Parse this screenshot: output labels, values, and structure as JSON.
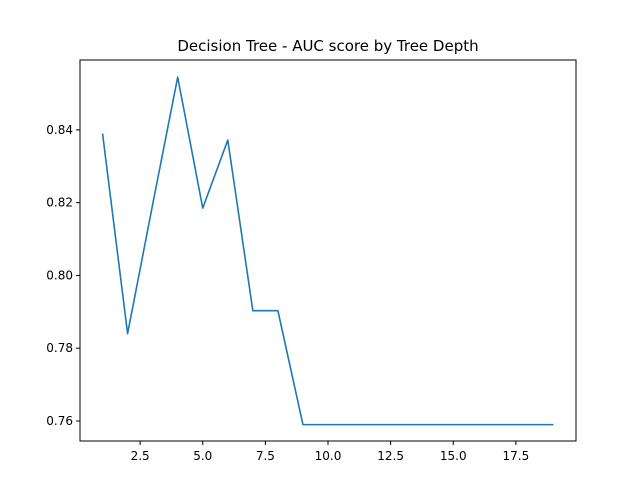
{
  "chart_data": {
    "type": "line",
    "title": "Decision Tree - AUC score by Tree Depth",
    "xlabel": "",
    "ylabel": "",
    "xlim": [
      0.1,
      19.9
    ],
    "ylim": [
      0.7545,
      0.8592
    ],
    "x_ticks": [
      2.5,
      5.0,
      7.5,
      10.0,
      12.5,
      15.0,
      17.5
    ],
    "x_tick_labels": [
      "2.5",
      "5.0",
      "7.5",
      "10.0",
      "12.5",
      "15.0",
      "17.5"
    ],
    "y_ticks": [
      0.76,
      0.78,
      0.8,
      0.82,
      0.84
    ],
    "y_tick_labels": [
      "0.76",
      "0.78",
      "0.80",
      "0.82",
      "0.84"
    ],
    "grid": false,
    "series": [
      {
        "name": "AUC",
        "color": "#1f77b4",
        "x": [
          1,
          2,
          3,
          4,
          5,
          6,
          7,
          8,
          9,
          10,
          11,
          12,
          13,
          14,
          15,
          16,
          17,
          18,
          19
        ],
        "y": [
          0.839,
          0.784,
          0.8195,
          0.8545,
          0.8185,
          0.8372,
          0.7903,
          0.7903,
          0.759,
          0.759,
          0.759,
          0.759,
          0.759,
          0.759,
          0.759,
          0.759,
          0.759,
          0.759,
          0.759
        ]
      }
    ]
  }
}
